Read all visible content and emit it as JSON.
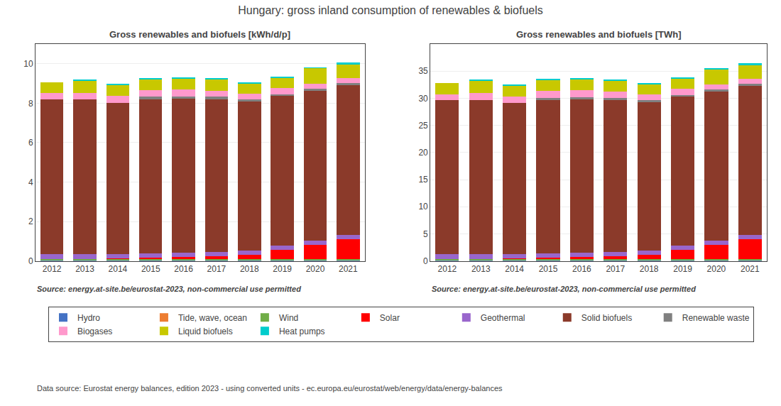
{
  "title": "Hungary: gross inland consumption of renewables & biofuels",
  "annotations": [
    "Data source: Eurostat energy balances, edition 2023 - using converted units - ec.europa.eu/eurostat/web/energy/data/energy-balances"
  ],
  "chart_data": [
    {
      "type": "bar",
      "stacked": true,
      "grid": true,
      "legend": "bottom",
      "title": "Gross renewables and biofuels [kWh/d/p]",
      "annotations": [
        "Source: energy.at-site.be/eurostat-2023, non-commercial use permitted"
      ],
      "categories": [
        "2012",
        "2013",
        "2014",
        "2015",
        "2016",
        "2017",
        "2018",
        "2019",
        "2020",
        "2021"
      ],
      "series": [
        {
          "name": "Hydro",
          "color": "#4472c4",
          "values": [
            0.04,
            0.04,
            0.04,
            0.04,
            0.04,
            0.04,
            0.04,
            0.04,
            0.04,
            0.04
          ]
        },
        {
          "name": "Tide, wave, ocean",
          "color": "#ed7d31",
          "values": [
            0.0,
            0.0,
            0.0,
            0.0,
            0.0,
            0.0,
            0.0,
            0.0,
            0.0,
            0.0
          ]
        },
        {
          "name": "Wind",
          "color": "#70ad47",
          "values": [
            0.06,
            0.06,
            0.06,
            0.06,
            0.06,
            0.06,
            0.06,
            0.06,
            0.06,
            0.06
          ]
        },
        {
          "name": "Solar",
          "color": "#ff0000",
          "values": [
            0.01,
            0.01,
            0.03,
            0.07,
            0.1,
            0.14,
            0.22,
            0.45,
            0.72,
            1.0
          ]
        },
        {
          "name": "Geothermal",
          "color": "#9966cc",
          "values": [
            0.22,
            0.22,
            0.2,
            0.22,
            0.22,
            0.22,
            0.22,
            0.22,
            0.22,
            0.22
          ]
        },
        {
          "name": "Solid biofuels",
          "color": "#8B3A2A",
          "values": [
            7.85,
            7.85,
            7.7,
            7.8,
            7.8,
            7.75,
            7.55,
            7.6,
            7.6,
            7.6
          ]
        },
        {
          "name": "Renewable waste",
          "color": "#808080",
          "values": [
            0.0,
            0.0,
            0.0,
            0.13,
            0.13,
            0.12,
            0.09,
            0.09,
            0.09,
            0.09
          ]
        },
        {
          "name": "Biogases",
          "color": "#ff99cc",
          "values": [
            0.32,
            0.35,
            0.35,
            0.34,
            0.34,
            0.3,
            0.3,
            0.3,
            0.27,
            0.27
          ]
        },
        {
          "name": "Liquid biofuels",
          "color": "#c8c800",
          "values": [
            0.55,
            0.62,
            0.55,
            0.57,
            0.57,
            0.58,
            0.53,
            0.53,
            0.78,
            0.68
          ]
        },
        {
          "name": "Heat pumps",
          "color": "#00cccc",
          "values": [
            0.0,
            0.03,
            0.03,
            0.03,
            0.03,
            0.03,
            0.03,
            0.03,
            0.03,
            0.1
          ]
        }
      ],
      "ylim": [
        0,
        11
      ],
      "yticks": [
        0,
        2,
        4,
        6,
        8,
        10
      ]
    },
    {
      "type": "bar",
      "stacked": true,
      "grid": true,
      "legend": "bottom",
      "title": "Gross renewables and biofuels [TWh]",
      "annotations": [
        "Source: energy.at-site.be/eurostat-2023, non-commercial use permitted"
      ],
      "categories": [
        "2012",
        "2013",
        "2014",
        "2015",
        "2016",
        "2017",
        "2018",
        "2019",
        "2020",
        "2021"
      ],
      "series": [
        {
          "name": "Hydro",
          "color": "#4472c4",
          "values": [
            0.15,
            0.15,
            0.15,
            0.15,
            0.15,
            0.15,
            0.15,
            0.15,
            0.15,
            0.15
          ]
        },
        {
          "name": "Tide, wave, ocean",
          "color": "#ed7d31",
          "values": [
            0.0,
            0.0,
            0.0,
            0.0,
            0.0,
            0.0,
            0.0,
            0.0,
            0.0,
            0.0
          ]
        },
        {
          "name": "Wind",
          "color": "#70ad47",
          "values": [
            0.22,
            0.22,
            0.22,
            0.22,
            0.22,
            0.22,
            0.22,
            0.22,
            0.22,
            0.22
          ]
        },
        {
          "name": "Solar",
          "color": "#ff0000",
          "values": [
            0.04,
            0.04,
            0.11,
            0.25,
            0.36,
            0.51,
            0.8,
            1.63,
            2.6,
            3.62
          ]
        },
        {
          "name": "Geothermal",
          "color": "#9966cc",
          "values": [
            0.8,
            0.8,
            0.72,
            0.8,
            0.8,
            0.8,
            0.8,
            0.8,
            0.8,
            0.8
          ]
        },
        {
          "name": "Solid biofuels",
          "color": "#8B3A2A",
          "values": [
            28.4,
            28.5,
            27.9,
            28.2,
            28.2,
            28.0,
            27.3,
            27.5,
            27.5,
            27.5
          ]
        },
        {
          "name": "Renewable waste",
          "color": "#808080",
          "values": [
            0.0,
            0.0,
            0.0,
            0.47,
            0.47,
            0.43,
            0.33,
            0.33,
            0.33,
            0.33
          ]
        },
        {
          "name": "Biogases",
          "color": "#ff99cc",
          "values": [
            1.16,
            1.27,
            1.27,
            1.23,
            1.23,
            1.09,
            1.09,
            1.09,
            0.98,
            0.98
          ]
        },
        {
          "name": "Liquid biofuels",
          "color": "#c8c800",
          "values": [
            1.99,
            2.24,
            1.99,
            2.06,
            2.06,
            2.1,
            1.92,
            1.92,
            2.82,
            2.46
          ]
        },
        {
          "name": "Heat pumps",
          "color": "#00cccc",
          "values": [
            0.0,
            0.11,
            0.11,
            0.11,
            0.11,
            0.11,
            0.11,
            0.11,
            0.11,
            0.36
          ]
        }
      ],
      "ylim": [
        0,
        40
      ],
      "yticks": [
        0,
        5,
        10,
        15,
        20,
        25,
        30,
        35
      ]
    }
  ]
}
